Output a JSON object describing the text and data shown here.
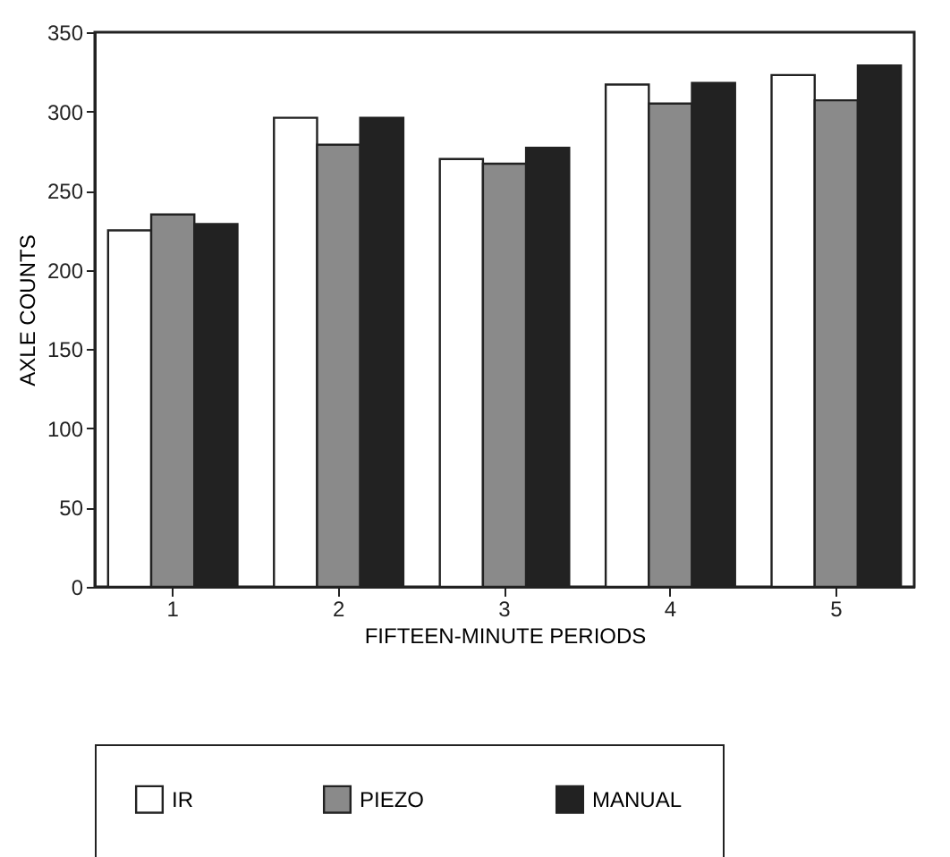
{
  "chart_data": {
    "type": "bar",
    "xlabel": "FIFTEEN-MINUTE PERIODS",
    "ylabel": "AXLE COUNTS",
    "categories": [
      "1",
      "2",
      "3",
      "4",
      "5"
    ],
    "series": [
      {
        "name": "IR",
        "color": "#ffffff",
        "values": [
          225,
          296,
          270,
          317,
          323
        ]
      },
      {
        "name": "PIEZO",
        "color": "#8a8a8a",
        "values": [
          235,
          279,
          267,
          305,
          307
        ]
      },
      {
        "name": "MANUAL",
        "color": "#222222",
        "values": [
          229,
          296,
          277,
          318,
          329
        ]
      }
    ],
    "ylim": [
      0,
      350
    ],
    "yticks": [
      0,
      50,
      100,
      150,
      200,
      250,
      300,
      350
    ],
    "grid": false,
    "legend": "bottom"
  }
}
